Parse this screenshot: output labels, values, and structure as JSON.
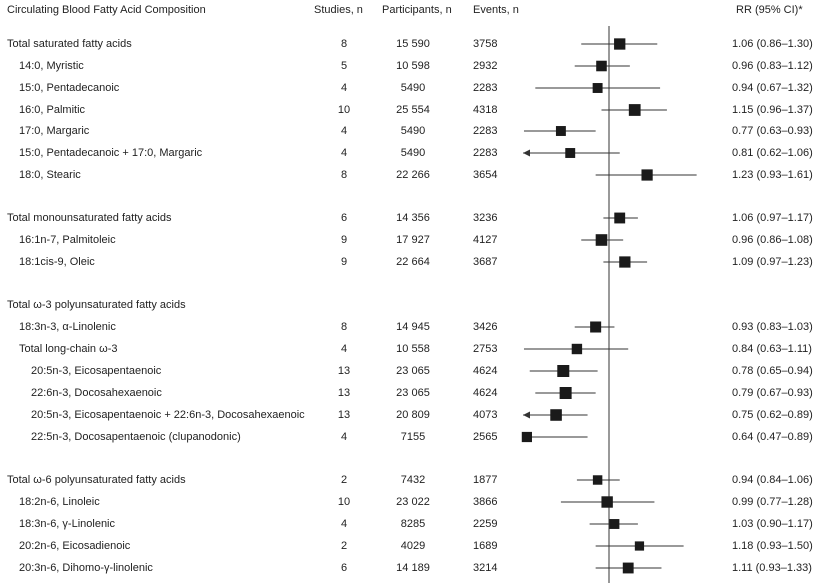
{
  "header": {
    "composition": "Circulating Blood Fatty Acid Composition",
    "studies": "Studies, n",
    "participants": "Participants, n",
    "events": "Events, n",
    "rr": "RR (95% CI)*"
  },
  "rows": [
    {
      "label": "Total saturated fatty acids",
      "indent": 0,
      "studies": "8",
      "participants": "15 590",
      "events": "3758",
      "rr_text": "1.06 (0.86–1.30)",
      "rr": 1.06,
      "lo": 0.86,
      "hi": 1.3
    },
    {
      "label": "14:0, Myristic",
      "indent": 1,
      "studies": "5",
      "participants": "10 598",
      "events": "2932",
      "rr_text": "0.96 (0.83–1.12)",
      "rr": 0.96,
      "lo": 0.83,
      "hi": 1.12
    },
    {
      "label": "15:0, Pentadecanoic",
      "indent": 1,
      "studies": "4",
      "participants": "5490",
      "events": "2283",
      "rr_text": "0.94 (0.67–1.32)",
      "rr": 0.94,
      "lo": 0.67,
      "hi": 1.32
    },
    {
      "label": "16:0, Palmitic",
      "indent": 1,
      "studies": "10",
      "participants": "25 554",
      "events": "4318",
      "rr_text": "1.15 (0.96–1.37)",
      "rr": 1.15,
      "lo": 0.96,
      "hi": 1.37
    },
    {
      "label": "17:0, Margaric",
      "indent": 1,
      "studies": "4",
      "participants": "5490",
      "events": "2283",
      "rr_text": "0.77 (0.63–0.93)",
      "rr": 0.77,
      "lo": 0.63,
      "hi": 0.93
    },
    {
      "label": "15:0, Pentadecanoic + 17:0, Margaric",
      "indent": 1,
      "studies": "4",
      "participants": "5490",
      "events": "2283",
      "rr_text": "0.81 (0.62–1.06)",
      "rr": 0.81,
      "lo": 0.62,
      "hi": 1.06
    },
    {
      "label": "18:0, Stearic",
      "indent": 1,
      "studies": "8",
      "participants": "22 266",
      "events": "3654",
      "rr_text": "1.23 (0.93–1.61)",
      "rr": 1.23,
      "lo": 0.93,
      "hi": 1.61
    },
    {
      "label": "Total monounsaturated fatty acids",
      "indent": 0,
      "studies": "6",
      "participants": "14 356",
      "events": "3236",
      "rr_text": "1.06 (0.97–1.17)",
      "rr": 1.06,
      "lo": 0.97,
      "hi": 1.17
    },
    {
      "label": "16:1n-7, Palmitoleic",
      "indent": 1,
      "studies": "9",
      "participants": "17 927",
      "events": "4127",
      "rr_text": "0.96 (0.86–1.08)",
      "rr": 0.96,
      "lo": 0.86,
      "hi": 1.08
    },
    {
      "label": "18:1cis-9, Oleic",
      "indent": 1,
      "studies": "9",
      "participants": "22 664",
      "events": "3687",
      "rr_text": "1.09 (0.97–1.23)",
      "rr": 1.09,
      "lo": 0.97,
      "hi": 1.23
    },
    {
      "label": "Total ω-3 polyunsaturated fatty acids",
      "indent": 0,
      "studies": "",
      "participants": "",
      "events": "",
      "rr_text": "",
      "rr": null,
      "lo": null,
      "hi": null
    },
    {
      "label": "18:3n-3, α-Linolenic",
      "indent": 1,
      "studies": "8",
      "participants": "14 945",
      "events": "3426",
      "rr_text": "0.93 (0.83–1.03)",
      "rr": 0.93,
      "lo": 0.83,
      "hi": 1.03
    },
    {
      "label": "Total long-chain ω-3",
      "indent": 1,
      "studies": "4",
      "participants": "10 558",
      "events": "2753",
      "rr_text": "0.84 (0.63–1.11)",
      "rr": 0.84,
      "lo": 0.63,
      "hi": 1.11
    },
    {
      "label": "20:5n-3, Eicosapentaenoic",
      "indent": 2,
      "studies": "13",
      "participants": "23 065",
      "events": "4624",
      "rr_text": "0.78 (0.65–0.94)",
      "rr": 0.78,
      "lo": 0.65,
      "hi": 0.94
    },
    {
      "label": "22:6n-3, Docosahexaenoic",
      "indent": 2,
      "studies": "13",
      "participants": "23 065",
      "events": "4624",
      "rr_text": "0.79 (0.67–0.93)",
      "rr": 0.79,
      "lo": 0.67,
      "hi": 0.93
    },
    {
      "label": "20:5n-3, Eicosapentaenoic + 22:6n-3, Docosahexaenoic",
      "indent": 2,
      "studies": "13",
      "participants": "20 809",
      "events": "4073",
      "rr_text": "0.75 (0.62–0.89)",
      "rr": 0.75,
      "lo": 0.62,
      "hi": 0.89
    },
    {
      "label": "22:5n-3, Docosapentaenoic (clupanodonic)",
      "indent": 2,
      "studies": "4",
      "participants": "7155",
      "events": "2565",
      "rr_text": "0.64 (0.47–0.89)",
      "rr": 0.64,
      "lo": 0.47,
      "hi": 0.89
    },
    {
      "label": "Total ω-6 polyunsaturated fatty acids",
      "indent": 0,
      "studies": "2",
      "participants": "7432",
      "events": "1877",
      "rr_text": "0.94 (0.84–1.06)",
      "rr": 0.94,
      "lo": 0.84,
      "hi": 1.06
    },
    {
      "label": "18:2n-6, Linoleic",
      "indent": 1,
      "studies": "10",
      "participants": "23 022",
      "events": "3866",
      "rr_text": "0.99 (0.77–1.28)",
      "rr": 0.99,
      "lo": 0.77,
      "hi": 1.28
    },
    {
      "label": "18:3n-6, γ-Linolenic",
      "indent": 1,
      "studies": "4",
      "participants": "8285",
      "events": "2259",
      "rr_text": "1.03 (0.90–1.17)",
      "rr": 1.03,
      "lo": 0.9,
      "hi": 1.17
    },
    {
      "label": "20:2n-6, Eicosadienoic",
      "indent": 1,
      "studies": "2",
      "participants": "4029",
      "events": "1689",
      "rr_text": "1.18 (0.93–1.50)",
      "rr": 1.18,
      "lo": 0.93,
      "hi": 1.5
    },
    {
      "label": "20:3n-6, Dihomo-γ-linolenic",
      "indent": 1,
      "studies": "6",
      "participants": "14 189",
      "events": "3214",
      "rr_text": "1.11 (0.93–1.33)",
      "rr": 1.11,
      "lo": 0.93,
      "hi": 1.33
    }
  ],
  "colors": {
    "text": "#222222",
    "marker": "#1a1a1a",
    "line": "#333333"
  },
  "chart_data": {
    "type": "forest",
    "reference_line": 1.0,
    "x_scale": "log",
    "points": [
      {
        "label": "Total saturated fatty acids",
        "rr": 1.06,
        "lo": 0.86,
        "hi": 1.3
      },
      {
        "label": "14:0, Myristic",
        "rr": 0.96,
        "lo": 0.83,
        "hi": 1.12
      },
      {
        "label": "15:0, Pentadecanoic",
        "rr": 0.94,
        "lo": 0.67,
        "hi": 1.32
      },
      {
        "label": "16:0, Palmitic",
        "rr": 1.15,
        "lo": 0.96,
        "hi": 1.37
      },
      {
        "label": "17:0, Margaric",
        "rr": 0.77,
        "lo": 0.63,
        "hi": 0.93
      },
      {
        "label": "15:0, Pentadecanoic + 17:0, Margaric",
        "rr": 0.81,
        "lo": 0.62,
        "hi": 1.06
      },
      {
        "label": "18:0, Stearic",
        "rr": 1.23,
        "lo": 0.93,
        "hi": 1.61
      },
      {
        "label": "Total monounsaturated fatty acids",
        "rr": 1.06,
        "lo": 0.97,
        "hi": 1.17
      },
      {
        "label": "16:1n-7, Palmitoleic",
        "rr": 0.96,
        "lo": 0.86,
        "hi": 1.08
      },
      {
        "label": "18:1cis-9, Oleic",
        "rr": 1.09,
        "lo": 0.97,
        "hi": 1.23
      },
      {
        "label": "18:3n-3, α-Linolenic",
        "rr": 0.93,
        "lo": 0.83,
        "hi": 1.03
      },
      {
        "label": "Total long-chain ω-3",
        "rr": 0.84,
        "lo": 0.63,
        "hi": 1.11
      },
      {
        "label": "20:5n-3, Eicosapentaenoic",
        "rr": 0.78,
        "lo": 0.65,
        "hi": 0.94
      },
      {
        "label": "22:6n-3, Docosahexaenoic",
        "rr": 0.79,
        "lo": 0.67,
        "hi": 0.93
      },
      {
        "label": "20:5n-3, Eicosapentaenoic + 22:6n-3, Docosahexaenoic",
        "rr": 0.75,
        "lo": 0.62,
        "hi": 0.89
      },
      {
        "label": "22:5n-3, Docosapentaenoic (clupanodonic)",
        "rr": 0.64,
        "lo": 0.47,
        "hi": 0.89
      },
      {
        "label": "Total ω-6 polyunsaturated fatty acids",
        "rr": 0.94,
        "lo": 0.84,
        "hi": 1.06
      },
      {
        "label": "18:2n-6, Linoleic",
        "rr": 0.99,
        "lo": 0.77,
        "hi": 1.28
      },
      {
        "label": "18:3n-6, γ-Linolenic",
        "rr": 1.03,
        "lo": 0.9,
        "hi": 1.17
      },
      {
        "label": "20:2n-6, Eicosadienoic",
        "rr": 1.18,
        "lo": 0.93,
        "hi": 1.5
      },
      {
        "label": "20:3n-6, Dihomo-γ-linolenic",
        "rr": 1.11,
        "lo": 0.93,
        "hi": 1.33
      }
    ]
  }
}
